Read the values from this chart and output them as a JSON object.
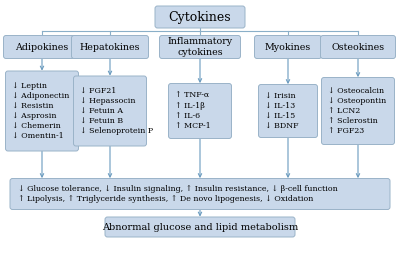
{
  "bg_color": "#ffffff",
  "box_color": "#c9d8ea",
  "box_edge_color": "#9ab3c8",
  "title": "Cytokines",
  "categories": [
    "Adipokines",
    "Hepatokines",
    "Inflammatory\ncytokines",
    "Myokines",
    "Osteokines"
  ],
  "category_items": [
    "↓ Leptin\n↓ Adiponectin\n↓ Resistin\n↓ Asprosin\n↓ Chemerin\n↓ Omentin-1",
    "↓ FGF21\n↓ Hepassocin\n↓ Fetuin A\n↓ Fetuin B\n↓ Selenoprotein P",
    "↑ TNF-α\n↑ IL-1β\n↑ IL-6\n↑ MCP-1",
    "↓ Irisin\n↓ IL-13\n↓ IL-15\n↓ BDNF",
    "↓ Osteocalcin\n↓ Osteopontin\n↑ LCN2\n↑ Sclerostin\n↑ FGF23"
  ],
  "bottom_box_line1": "↓ Glucose tolerance, ↓ Insulin signaling, ↑ Insulin resistance, ↓ β-cell function",
  "bottom_box_line2": "↑ Lipolysis, ↑ Triglyceride synthesis, ↑ De novo lipogenesis, ↓ Oxidation",
  "final_box_text": "Abnormal glucose and lipid metabolism",
  "line_color": "#8aafc8",
  "arrow_color": "#6a9bbf"
}
